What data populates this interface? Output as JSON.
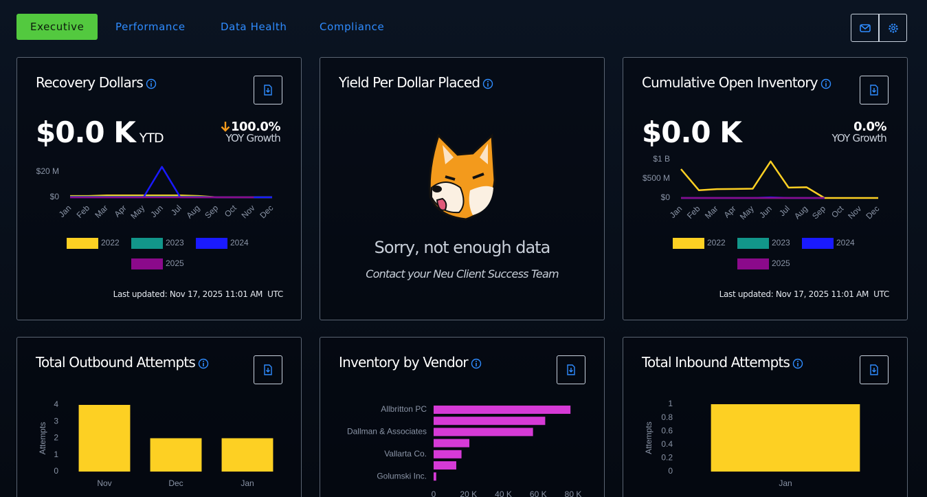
{
  "nav": {
    "tabs": [
      "Executive",
      "Performance",
      "Data Health",
      "Compliance"
    ],
    "active": 0
  },
  "cards": [
    {
      "title": "Recovery Dollars",
      "value": "$0.0 K",
      "value_suffix": "YTD",
      "change": "100.0%",
      "change_label": "YOY Growth",
      "last_updated": "Last updated: Nov 17, 2025 11:01 AM  UTC",
      "chart_data": {
        "type": "line",
        "categories": [
          "Jan",
          "Feb",
          "Mar",
          "Apr",
          "May",
          "Jun",
          "Jul",
          "Aug",
          "Sep",
          "Oct",
          "Nov",
          "Dec"
        ],
        "ylim": [
          0,
          26000000
        ],
        "yticks": [
          {
            "value": 0,
            "label": "$0"
          },
          {
            "value": 20000000,
            "label": "$20 M"
          }
        ],
        "series": [
          {
            "name": "2022",
            "color": "#fdd023",
            "values": [
              1000000,
              1000000,
              1500000,
              1500000,
              1500000,
              1500000,
              1500000,
              1000000,
              0,
              0,
              0,
              0
            ]
          },
          {
            "name": "2023",
            "color": "#12968a",
            "values": [
              500000,
              500000,
              500000,
              500000,
              500000,
              500000,
              500000,
              500000,
              0,
              0,
              0,
              0
            ]
          },
          {
            "name": "2024",
            "color": "#1a1aff",
            "values": [
              0,
              0,
              0,
              0,
              0,
              24000000,
              0,
              0,
              0,
              0,
              0,
              0
            ]
          },
          {
            "name": "2025",
            "color": "#8b0a8b",
            "values": [
              0,
              0,
              0,
              0,
              0,
              0,
              0,
              0,
              0,
              0,
              0,
              null
            ]
          }
        ]
      }
    },
    {
      "title": "Yield Per Dollar Placed",
      "message": "Sorry, not enough data",
      "submessage": "Contact your Neu Client Success Team"
    },
    {
      "title": "Cumulative Open Inventory",
      "value": "$0.0 K",
      "change": "0.0%",
      "change_label": "YOY Growth",
      "last_updated": "Last updated: Nov 17, 2025 11:01 AM  UTC",
      "chart_data": {
        "type": "line",
        "categories": [
          "Jan",
          "Feb",
          "Mar",
          "Apr",
          "May",
          "Jun",
          "Jul",
          "Aug",
          "Sep",
          "Oct",
          "Nov",
          "Dec"
        ],
        "ylim": [
          0,
          1000000000
        ],
        "yticks": [
          {
            "value": 0,
            "label": "$0"
          },
          {
            "value": 500000000,
            "label": "$500 M"
          },
          {
            "value": 1000000000,
            "label": "$1 B"
          }
        ],
        "series": [
          {
            "name": "2022",
            "color": "#fdd023",
            "values": [
              750000000,
              200000000,
              230000000,
              235000000,
              240000000,
              950000000,
              270000000,
              280000000,
              0,
              0,
              0,
              0
            ]
          },
          {
            "name": "2023",
            "color": "#12968a",
            "values": [
              0,
              0,
              0,
              0,
              0,
              0,
              0,
              0,
              0,
              null,
              null,
              null
            ]
          },
          {
            "name": "2024",
            "color": "#1a1aff",
            "values": [
              0,
              0,
              0,
              0,
              0,
              15000000,
              0,
              0,
              0,
              null,
              null,
              null
            ]
          },
          {
            "name": "2025",
            "color": "#8b0a8b",
            "values": [
              0,
              0,
              0,
              0,
              0,
              0,
              0,
              0,
              0,
              null,
              null,
              null
            ]
          }
        ]
      }
    },
    {
      "title": "Total Outbound Attempts",
      "chart_data": {
        "type": "bar",
        "y_label": "Attempts",
        "categories": [
          "Nov",
          "Dec",
          "Jan"
        ],
        "values": [
          4,
          2,
          2
        ],
        "color": "#fdd023",
        "ylim": [
          0,
          4
        ],
        "yticks": [
          0,
          1,
          2,
          3,
          4
        ]
      }
    },
    {
      "title": "Inventory by Vendor",
      "chart_data": {
        "type": "hbar",
        "categories": [
          "Allbritton PC",
          null,
          "Dallman & Associates",
          null,
          "Vallarta Co.",
          null,
          "Golumski Inc."
        ],
        "values": [
          78500,
          64000,
          57000,
          20500,
          16000,
          13000,
          1500
        ],
        "color": "#d63ad6",
        "xlim": [
          0,
          80000
        ],
        "xticks": [
          0,
          {
            "value": 20000,
            "label": "20 K"
          },
          {
            "value": 40000,
            "label": "40 K"
          },
          {
            "value": 60000,
            "label": "60 K"
          },
          {
            "value": 80000,
            "label": "80 K"
          }
        ]
      }
    },
    {
      "title": "Total Inbound Attempts",
      "chart_data": {
        "type": "bar",
        "y_label": "Attempts",
        "categories": [
          "Jan"
        ],
        "values": [
          1
        ],
        "color": "#fdd023",
        "ylim": [
          0,
          1
        ],
        "yticks": [
          0,
          0.2,
          0.4,
          0.6,
          0.8,
          1
        ]
      }
    }
  ]
}
